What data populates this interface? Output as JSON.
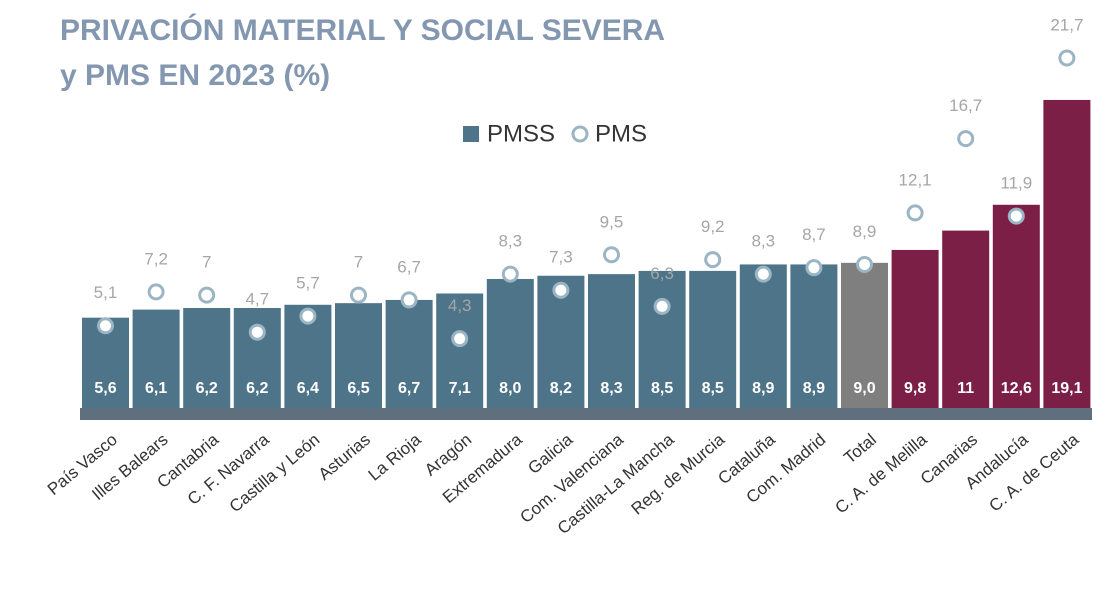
{
  "chart_data": {
    "type": "bar",
    "title": "PRIVACIÓN MATERIAL Y SOCIAL SEVERA",
    "subtitle": "y PMS EN 2023 (%)",
    "categories": [
      "País Vasco",
      "Illes Balears",
      "Cantabria",
      "C. F. Navarra",
      "Castilla y León",
      "Asturias",
      "La Rioja",
      "Aragón",
      "Extremadura",
      "Galicia",
      "Com. Valenciana",
      "Castilla-La Mancha",
      "Reg. de Murcia",
      "Cataluña",
      "Com. Madrid",
      "Total",
      "C. A. de Melilla",
      "Canarias",
      "Andalucía",
      "C. A. de Ceuta"
    ],
    "series": [
      {
        "name": "PMSS",
        "type": "bar",
        "color": "#4e7489",
        "colors": [
          "#4e7489",
          "#4e7489",
          "#4e7489",
          "#4e7489",
          "#4e7489",
          "#4e7489",
          "#4e7489",
          "#4e7489",
          "#4e7489",
          "#4e7489",
          "#4e7489",
          "#4e7489",
          "#4e7489",
          "#4e7489",
          "#4e7489",
          "#7f7f7f",
          "#7b1f47",
          "#7b1f47",
          "#7b1f47",
          "#7b1f47"
        ],
        "values": [
          5.6,
          6.1,
          6.2,
          6.2,
          6.4,
          6.5,
          6.7,
          7.1,
          8.0,
          8.2,
          8.3,
          8.5,
          8.5,
          8.9,
          8.9,
          9.0,
          9.8,
          11,
          12.6,
          19.1
        ],
        "value_labels": [
          "5,6",
          "6,1",
          "6,2",
          "6,2",
          "6,4",
          "6,5",
          "6,7",
          "7,1",
          "8,0",
          "8,2",
          "8,3",
          "8,5",
          "8,5",
          "8,9",
          "8,9",
          "9,0",
          "9,8",
          "11",
          "12,6",
          "19,1"
        ]
      },
      {
        "name": "PMS",
        "type": "marker",
        "color": "#9bb5c4",
        "values": [
          5.1,
          7.2,
          7,
          4.7,
          5.7,
          7,
          6.7,
          4.3,
          8.3,
          7.3,
          9.5,
          6.3,
          9.2,
          8.3,
          8.7,
          8.9,
          12.1,
          16.7,
          11.9,
          21.7
        ],
        "value_labels": [
          "5,1",
          "7,2",
          "7",
          "4,7",
          "5,7",
          "7",
          "6,7",
          "4,3",
          "8,3",
          "7,3",
          "9,5",
          "6,3",
          "9,2",
          "8,3",
          "8,7",
          "8,9",
          "12,1",
          "16,7",
          "11,9",
          "21,7"
        ]
      }
    ]
  }
}
